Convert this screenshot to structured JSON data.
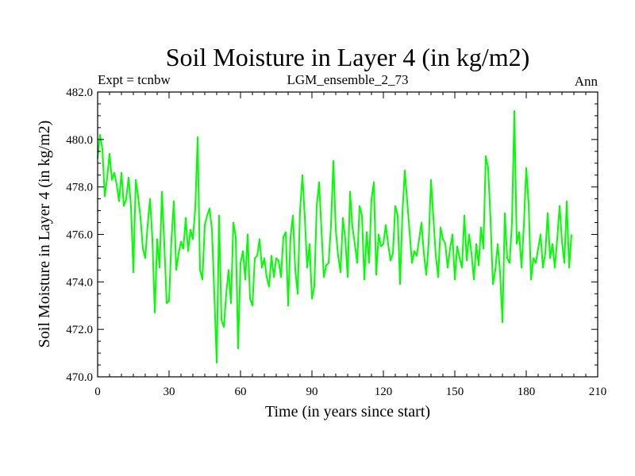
{
  "chart_data": {
    "type": "line",
    "title": "Soil Moisture in Layer 4 (in kg/m2)",
    "subtitle_left": "Expt = tcnbw",
    "subtitle_center": "LGM_ensemble_2_73",
    "subtitle_right": "Ann",
    "xlabel": "Time (in years since start)",
    "ylabel": "Soil Moisture in Layer 4 (in kg/m2)",
    "xlim": [
      0,
      210
    ],
    "ylim": [
      470,
      482
    ],
    "xticks": [
      0,
      30,
      60,
      90,
      120,
      150,
      180,
      210
    ],
    "yticks": [
      470,
      472,
      474,
      476,
      478,
      480,
      482
    ],
    "xtick_labels": [
      "0",
      "30",
      "60",
      "90",
      "120",
      "150",
      "180",
      "210"
    ],
    "ytick_labels": [
      "470.0",
      "472.0",
      "474.0",
      "476.0",
      "478.0",
      "480.0",
      "482.0"
    ],
    "grid": false,
    "series": [
      {
        "name": "Soil Moisture",
        "color": "#00ff00",
        "x_start": 0,
        "x_step": 1,
        "values": [
          479.2,
          480.2,
          479.6,
          477.6,
          478.4,
          479.4,
          478.3,
          478.6,
          478.1,
          477.4,
          478.6,
          477.2,
          477.5,
          478.4,
          477.2,
          474.4,
          478.3,
          477.6,
          476.7,
          475.4,
          475.0,
          476.4,
          477.5,
          475.8,
          472.7,
          475.8,
          474.6,
          477.8,
          475.6,
          473.1,
          473.2,
          475.8,
          477.4,
          474.5,
          475.2,
          475.7,
          475.4,
          476.7,
          475.3,
          476.2,
          475.8,
          477.1,
          480.1,
          474.5,
          474.1,
          476.4,
          476.8,
          477.1,
          476.2,
          473.5,
          470.6,
          476.8,
          472.4,
          472.1,
          473.5,
          474.5,
          473.1,
          476.5,
          475.9,
          471.2,
          474.8,
          475.3,
          474.1,
          476.0,
          473.3,
          473.0,
          475.0,
          475.1,
          475.8,
          474.6,
          475.0,
          474.2,
          473.8,
          475.1,
          474.2,
          475.0,
          474.9,
          474.2,
          475.9,
          476.1,
          473.0,
          475.9,
          476.8,
          474.5,
          473.5,
          477.0,
          478.5,
          476.7,
          474.6,
          475.6,
          473.3,
          473.8,
          477.2,
          478.2,
          476.2,
          474.2,
          474.7,
          474.8,
          476.4,
          479.1,
          476.2,
          475.1,
          474.4,
          476.7,
          475.8,
          474.2,
          477.8,
          476.3,
          475.6,
          474.8,
          477.2,
          476.8,
          474.1,
          476.1,
          474.8,
          477.5,
          478.2,
          474.3,
          476.0,
          475.5,
          475.6,
          476.4,
          475.6,
          474.9,
          475.2,
          477.2,
          476.8,
          473.9,
          476.9,
          478.7,
          477.4,
          476.1,
          474.8,
          475.3,
          475.1,
          475.8,
          476.5,
          475.2,
          474.3,
          475.6,
          478.3,
          476.7,
          475.1,
          474.2,
          476.3,
          475.8,
          475.6,
          474.6,
          475.4,
          476.0,
          474.1,
          475.5,
          475.0,
          474.6,
          476.8,
          474.9,
          476.0,
          475.2,
          474.1,
          475.6,
          474.7,
          476.3,
          475.4,
          479.3,
          478.8,
          476.6,
          473.9,
          474.5,
          475.6,
          474.4,
          472.3,
          476.9,
          475.0,
          474.8,
          476.5,
          481.2,
          475.6,
          476.1,
          474.6,
          476.4,
          478.8,
          477.3,
          474.1,
          475.0,
          474.8,
          475.4,
          476.0,
          474.6,
          475.2,
          476.9,
          475.0,
          475.6,
          474.6,
          475.8,
          477.2,
          475.7,
          474.8,
          477.4,
          474.6,
          476.0
        ]
      }
    ]
  }
}
